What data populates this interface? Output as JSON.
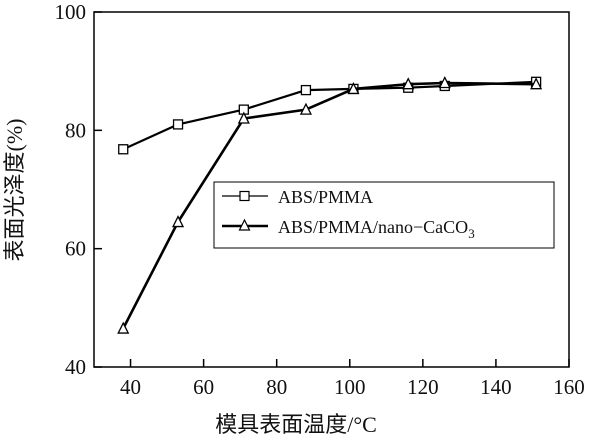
{
  "chart_data": {
    "type": "line",
    "xlabel": "模具表面温度/°C",
    "ylabel": "表面光泽度(%)",
    "xlim": [
      30,
      160
    ],
    "ylim": [
      40,
      100
    ],
    "x_ticks": [
      "40",
      "60",
      "80",
      "100",
      "120",
      "140",
      "160"
    ],
    "y_ticks": [
      "40",
      "60",
      "80",
      "100"
    ],
    "grid": false,
    "legend_position": "center-right",
    "series": [
      {
        "name": "ABS/PMMA",
        "marker": "square",
        "x": [
          38,
          53,
          71,
          88,
          101,
          116,
          126,
          151
        ],
        "y": [
          76.8,
          81.0,
          83.5,
          86.8,
          87.0,
          87.2,
          87.5,
          88.2
        ]
      },
      {
        "name": "ABS/PMMA/nano−CaCO",
        "name_subscript": "3",
        "marker": "triangle",
        "x": [
          38,
          53,
          71,
          88,
          101,
          116,
          126,
          151
        ],
        "y": [
          46.5,
          64.5,
          82.0,
          83.5,
          87.0,
          87.8,
          88.0,
          87.8
        ]
      }
    ]
  }
}
